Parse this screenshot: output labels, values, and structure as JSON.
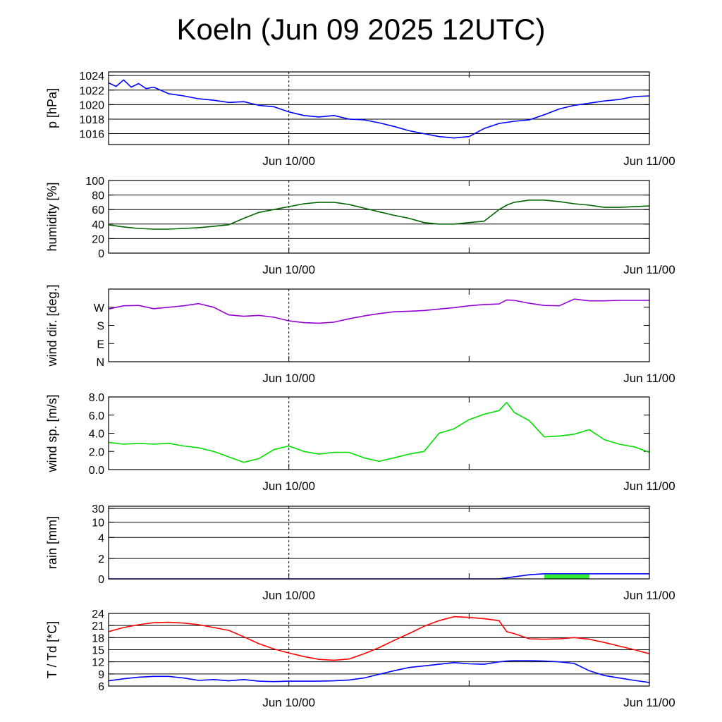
{
  "title": "Koeln (Jun 09 2025 12UTC)",
  "chart_data": [
    {
      "type": "line",
      "ylabel": "p [hPa]",
      "ylim": [
        1014.5,
        1024.5
      ],
      "yticks": [
        1016,
        1018,
        1020,
        1022,
        1024
      ],
      "ytick_labels": [
        "1016",
        "1018",
        "1020",
        "1022",
        "1024"
      ],
      "grid": true,
      "x_ticks": [
        "Jun 10/00",
        "Jun 11/00"
      ],
      "series": [
        {
          "color": "#0000ff",
          "x": [
            0,
            0.5,
            1,
            1.5,
            2,
            2.5,
            3,
            4,
            5,
            6,
            7,
            8,
            9,
            10,
            11,
            12,
            13,
            14,
            15,
            16,
            17,
            18,
            19,
            20,
            21,
            22,
            23,
            24,
            25,
            26,
            27,
            28,
            29,
            30,
            31,
            32,
            33,
            34,
            35,
            36
          ],
          "values": [
            1023.0,
            1022.5,
            1023.4,
            1022.4,
            1022.9,
            1022.2,
            1022.4,
            1021.5,
            1021.2,
            1020.8,
            1020.6,
            1020.3,
            1020.4,
            1019.9,
            1019.7,
            1019.0,
            1018.5,
            1018.3,
            1018.5,
            1018.0,
            1017.9,
            1017.5,
            1017.0,
            1016.4,
            1016.0,
            1015.6,
            1015.4,
            1015.6,
            1016.7,
            1017.4,
            1017.7,
            1017.9,
            1018.6,
            1019.4,
            1019.9,
            1020.2,
            1020.5,
            1020.7,
            1021.1,
            1021.2
          ]
        }
      ]
    },
    {
      "type": "line",
      "ylabel": "humidity [%]",
      "ylim": [
        0,
        100
      ],
      "yticks": [
        0,
        20,
        40,
        60,
        80,
        100
      ],
      "ytick_labels": [
        "0",
        "20",
        "40",
        "60",
        "80",
        "100"
      ],
      "grid": true,
      "x_ticks": [
        "Jun 10/00",
        "Jun 11/00"
      ],
      "series": [
        {
          "color": "#006400",
          "x": [
            0,
            1,
            2,
            3,
            4,
            5,
            6,
            7,
            8,
            9,
            10,
            11,
            12,
            13,
            14,
            15,
            16,
            17,
            18,
            19,
            20,
            21,
            22,
            23,
            24,
            25,
            26,
            26.5,
            27,
            28,
            29,
            30,
            31,
            32,
            33,
            34,
            35,
            36
          ],
          "values": [
            39,
            36,
            34,
            33,
            33,
            34,
            35,
            37,
            39,
            48,
            56,
            60,
            64,
            68,
            70,
            70,
            67,
            62,
            57,
            52,
            48,
            42,
            40,
            40,
            42,
            44,
            60,
            66,
            70,
            73,
            73,
            71,
            68,
            66,
            63,
            63,
            64,
            65
          ]
        }
      ]
    },
    {
      "type": "line",
      "ylabel": "wind dir. [deg.]",
      "ylim": [
        0,
        400
      ],
      "yticks": [
        0,
        100,
        200,
        300
      ],
      "ytick_labels": [
        "N",
        "E",
        "S",
        "W"
      ],
      "grid": false,
      "x_ticks": [
        "Jun 10/00",
        "Jun 11/00"
      ],
      "series": [
        {
          "color": "#9400d3",
          "x": [
            0,
            1,
            2,
            3,
            4,
            5,
            6,
            7,
            8,
            9,
            10,
            11,
            12,
            13,
            14,
            15,
            16,
            17,
            18,
            19,
            20,
            21,
            22,
            23,
            24,
            25,
            26,
            26.5,
            27,
            28,
            29,
            30,
            31,
            32,
            33,
            34,
            35,
            36
          ],
          "values": [
            290,
            308,
            310,
            292,
            300,
            308,
            320,
            300,
            258,
            250,
            255,
            245,
            225,
            215,
            212,
            218,
            236,
            252,
            265,
            275,
            278,
            282,
            290,
            298,
            308,
            315,
            318,
            340,
            338,
            322,
            310,
            308,
            345,
            335,
            335,
            338,
            338,
            338
          ]
        }
      ]
    },
    {
      "type": "line",
      "ylabel": "wind sp. [m/s]",
      "ylim": [
        0,
        8
      ],
      "yticks": [
        0,
        2,
        4,
        6,
        8
      ],
      "ytick_labels": [
        "0.0",
        "2.0",
        "4.0",
        "6.0",
        "8.0"
      ],
      "grid": false,
      "x_ticks": [
        "Jun 10/00",
        "Jun 11/00"
      ],
      "series": [
        {
          "color": "#00dd00",
          "x": [
            0,
            1,
            2,
            3,
            4,
            5,
            6,
            7,
            8,
            9,
            10,
            11,
            12,
            13,
            14,
            15,
            16,
            17,
            18,
            19,
            20,
            21,
            22,
            23,
            24,
            25,
            26,
            26.5,
            27,
            28,
            29,
            30,
            31,
            32,
            33,
            34,
            35,
            36
          ],
          "values": [
            3.0,
            2.8,
            2.9,
            2.8,
            2.9,
            2.6,
            2.4,
            2.0,
            1.4,
            0.8,
            1.2,
            2.2,
            2.6,
            2.0,
            1.7,
            1.9,
            1.9,
            1.3,
            0.9,
            1.3,
            1.7,
            2.0,
            4.0,
            4.5,
            5.5,
            6.1,
            6.5,
            7.4,
            6.3,
            5.4,
            3.6,
            3.7,
            3.9,
            4.4,
            3.3,
            2.8,
            2.5,
            1.9
          ]
        }
      ]
    },
    {
      "type": "area",
      "ylabel": "rain [mm]",
      "ylim": [
        0,
        30
      ],
      "yticks": [
        0,
        2,
        4,
        10,
        30
      ],
      "ytick_labels": [
        "0",
        "2",
        "4",
        "10",
        "30"
      ],
      "y_scale": "nonlinear",
      "grid": true,
      "x_ticks": [
        "Jun 10/00",
        "Jun 11/00"
      ],
      "series": [
        {
          "color": "#0000ff",
          "x": [
            0,
            24,
            25,
            26,
            26.5,
            27,
            28,
            29,
            36
          ],
          "values": [
            0,
            0,
            0,
            0,
            0.1,
            0.2,
            0.4,
            0.5,
            0.5
          ]
        },
        {
          "color": "#33ee33",
          "x": [
            29,
            32
          ],
          "values": [
            0.45,
            0.45
          ]
        }
      ]
    },
    {
      "type": "line",
      "ylabel": "T / Td [*C]",
      "ylim": [
        6,
        24
      ],
      "yticks": [
        6,
        9,
        12,
        15,
        18,
        21,
        24
      ],
      "ytick_labels": [
        "6",
        "9",
        "12",
        "15",
        "18",
        "21",
        "24"
      ],
      "grid": true,
      "x_ticks": [
        "Jun 10/00",
        "Jun 11/00"
      ],
      "series": [
        {
          "color": "#ff0000",
          "x": [
            0,
            1,
            2,
            3,
            4,
            5,
            6,
            7,
            8,
            9,
            10,
            11,
            12,
            13,
            14,
            15,
            16,
            17,
            18,
            19,
            20,
            21,
            22,
            23,
            24,
            25,
            26,
            26.5,
            27,
            28,
            29,
            30,
            31,
            32,
            33,
            34,
            35,
            36
          ],
          "values": [
            19.5,
            20.5,
            21.2,
            21.7,
            21.8,
            21.6,
            21.2,
            20.5,
            19.8,
            18.2,
            16.5,
            15.2,
            14.2,
            13.3,
            12.6,
            12.4,
            12.7,
            14.0,
            15.5,
            17.3,
            19.0,
            20.8,
            22.2,
            23.2,
            23.0,
            22.7,
            22.2,
            19.5,
            19.0,
            17.7,
            17.6,
            17.7,
            18.0,
            17.6,
            16.8,
            15.9,
            15.0,
            14.0
          ]
        },
        {
          "color": "#0000ff",
          "x": [
            0,
            1,
            2,
            3,
            4,
            5,
            6,
            7,
            8,
            9,
            10,
            11,
            12,
            13,
            14,
            15,
            16,
            17,
            18,
            19,
            20,
            21,
            22,
            23,
            24,
            25,
            26,
            26.5,
            27,
            28,
            29,
            30,
            31,
            32,
            33,
            34,
            35,
            36
          ],
          "values": [
            7.3,
            7.8,
            8.2,
            8.4,
            8.4,
            8.0,
            7.4,
            7.6,
            7.3,
            7.6,
            7.2,
            7.1,
            7.2,
            7.2,
            7.2,
            7.3,
            7.5,
            8.0,
            8.9,
            9.8,
            10.6,
            11.0,
            11.4,
            11.8,
            11.5,
            11.4,
            12.0,
            12.2,
            12.3,
            12.3,
            12.2,
            12.0,
            11.6,
            9.8,
            8.6,
            8.0,
            7.4,
            6.9
          ]
        }
      ]
    }
  ]
}
